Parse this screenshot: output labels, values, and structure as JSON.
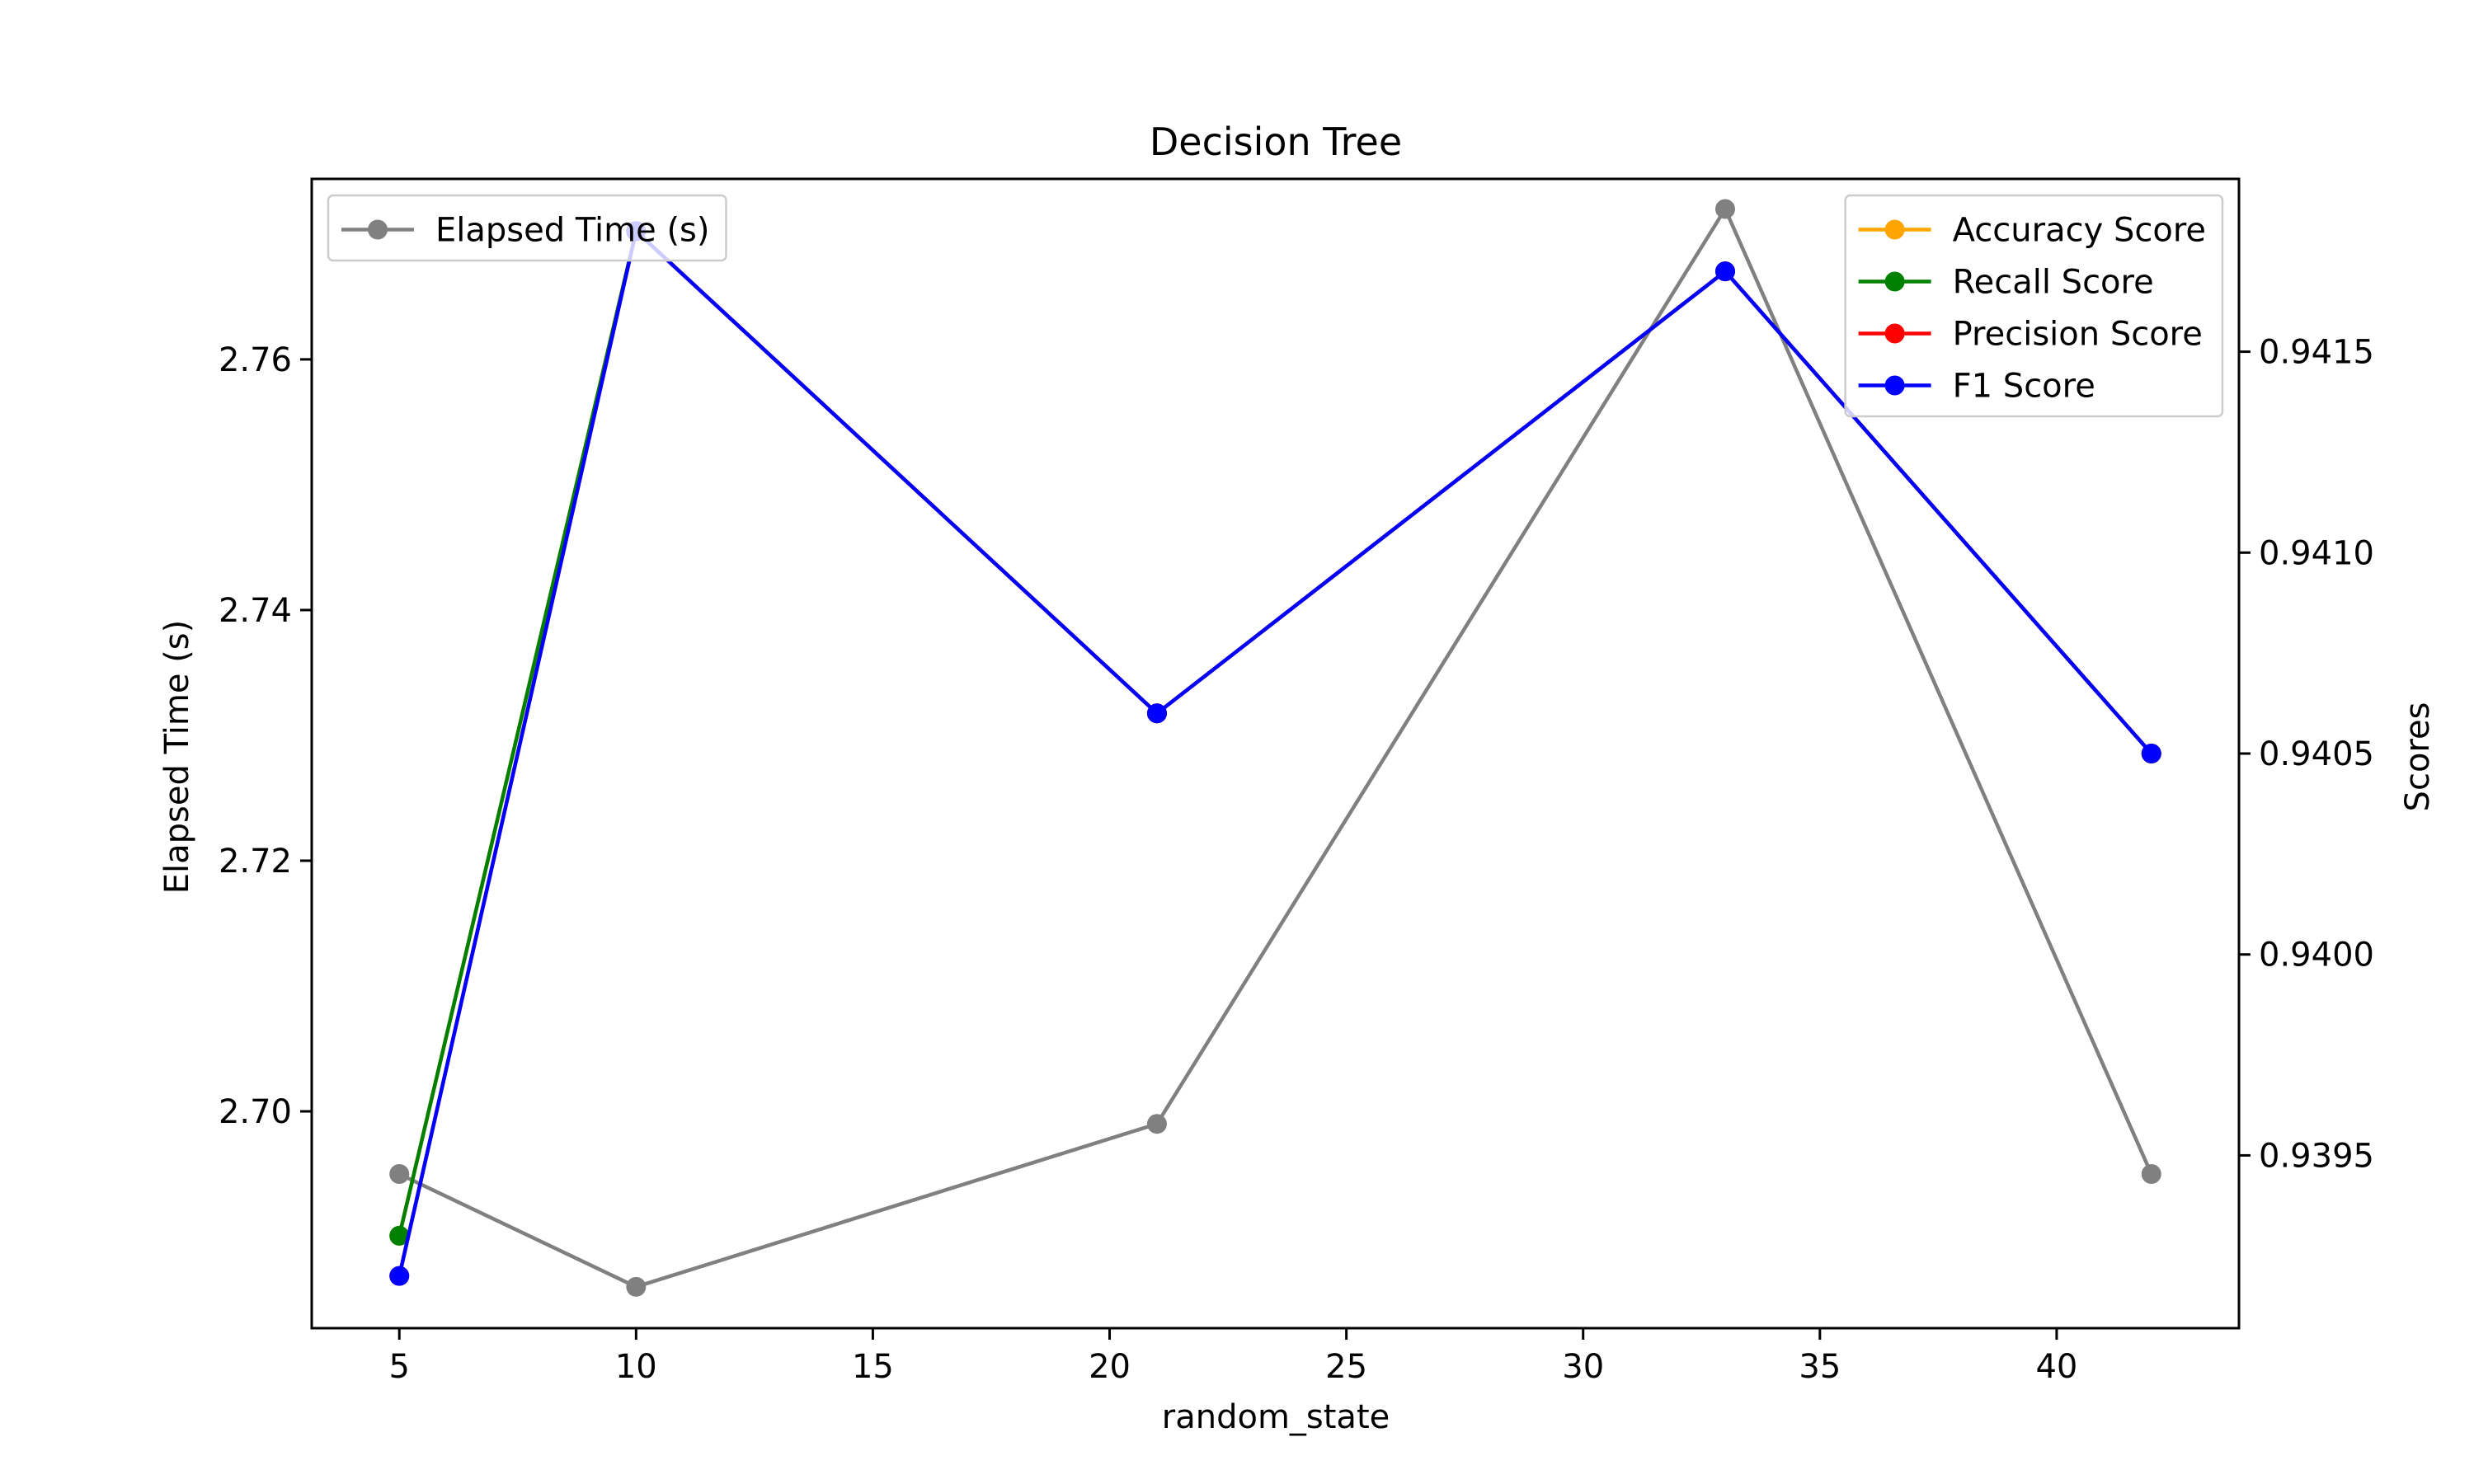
{
  "chart_data": {
    "type": "line",
    "title": "Decision Tree",
    "xlabel": "random_state",
    "ylabel_left": "Elapsed Time (s)",
    "ylabel_right": "Scores",
    "x": [
      5,
      10,
      21,
      33,
      42
    ],
    "xlim": [
      3.15,
      43.85
    ],
    "ylim_left": [
      2.6827,
      2.7744
    ],
    "ylim_right": [
      0.93907,
      0.94193
    ],
    "xticks": [
      "5",
      "10",
      "15",
      "20",
      "25",
      "30",
      "35",
      "40"
    ],
    "yticks_left": [
      "2.70",
      "2.72",
      "2.74",
      "2.76"
    ],
    "yticks_right": [
      "0.9395",
      "0.9400",
      "0.9405",
      "0.9410",
      "0.9415"
    ],
    "grid": false,
    "series": [
      {
        "name": "Elapsed Time (s)",
        "axis": "left",
        "color": "#808080",
        "values": [
          2.695,
          2.686,
          2.699,
          2.772,
          2.695
        ]
      },
      {
        "name": "Accuracy Score",
        "axis": "right",
        "color": "#FFA500",
        "values": [
          0.9393,
          0.9418,
          0.9406,
          0.9417,
          0.9405
        ]
      },
      {
        "name": "Recall Score",
        "axis": "right",
        "color": "#008000",
        "values": [
          0.9393,
          0.9418,
          0.9406,
          0.9417,
          0.9405
        ]
      },
      {
        "name": "Precision Score",
        "axis": "right",
        "color": "#FF0000",
        "values": [
          0.9392,
          0.9418,
          0.9406,
          0.9417,
          0.9405
        ]
      },
      {
        "name": "F1 Score",
        "axis": "right",
        "color": "#0000FF",
        "values": [
          0.9392,
          0.9418,
          0.9406,
          0.9417,
          0.9405
        ]
      }
    ],
    "legends": [
      {
        "placement": "upper-left",
        "entries": [
          "Elapsed Time (s)"
        ]
      },
      {
        "placement": "upper-right",
        "entries": [
          "Accuracy Score",
          "Recall Score",
          "Precision Score",
          "F1 Score"
        ]
      }
    ]
  }
}
